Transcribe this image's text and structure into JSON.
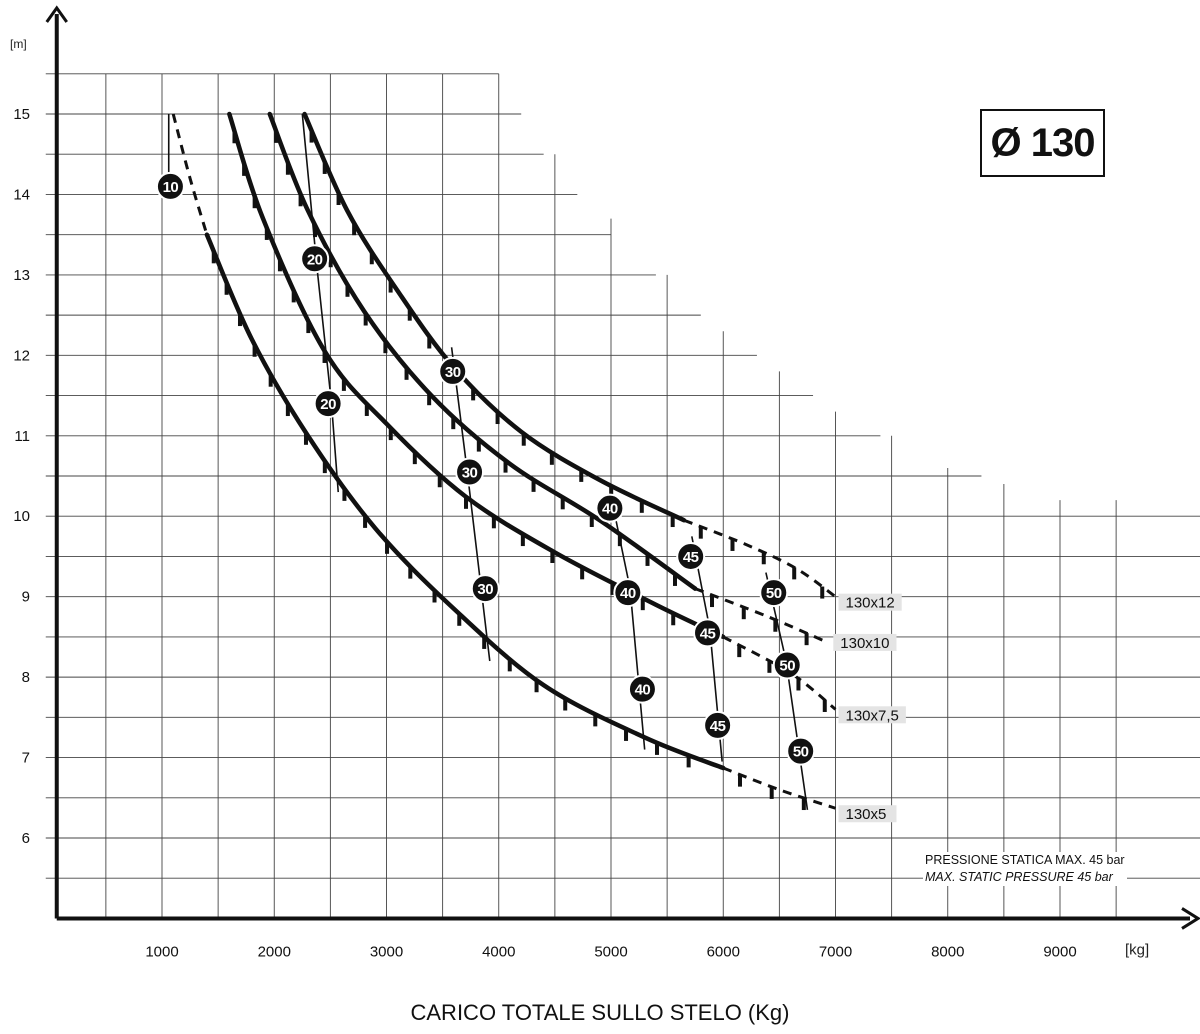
{
  "diameter_label": "Ø 130",
  "pressure_note": {
    "it": "PRESSIONE STATICA MAX. 45 bar",
    "en": "MAX. STATIC PRESSURE 45 bar"
  },
  "chart_data": {
    "type": "line",
    "title": "",
    "xlabel": "CARICO TOTALE SULLO STELO (Kg)",
    "x_unit": "[kg]",
    "y_unit": "[m]",
    "xlim": [
      0,
      10200
    ],
    "ylim": [
      5,
      15.5
    ],
    "x_ticks": [
      1000,
      2000,
      3000,
      4000,
      5000,
      6000,
      7000,
      8000,
      9000
    ],
    "y_ticks": [
      6,
      7,
      8,
      9,
      10,
      11,
      12,
      13,
      14,
      15
    ],
    "grid": true,
    "series": [
      {
        "name": "130x12",
        "points": [
          [
            2270,
            15.0
          ],
          [
            2650,
            13.8
          ],
          [
            3100,
            12.8
          ],
          [
            3600,
            11.85
          ],
          [
            4200,
            11.05
          ],
          [
            4900,
            10.45
          ],
          [
            5650,
            9.95
          ]
        ],
        "dashed_points": [
          [
            5650,
            9.95
          ],
          [
            6200,
            9.65
          ],
          [
            6650,
            9.35
          ],
          [
            7000,
            9.0
          ]
        ]
      },
      {
        "name": "130x10",
        "points": [
          [
            1960,
            15.0
          ],
          [
            2300,
            13.8
          ],
          [
            2800,
            12.55
          ],
          [
            3400,
            11.5
          ],
          [
            4100,
            10.65
          ],
          [
            4900,
            9.95
          ],
          [
            5750,
            9.1
          ]
        ],
        "dashed_points": [
          [
            5750,
            9.1
          ],
          [
            6400,
            8.75
          ],
          [
            6900,
            8.45
          ]
        ]
      },
      {
        "name": "130x7,5",
        "points": [
          [
            1600,
            15.0
          ],
          [
            1900,
            13.7
          ],
          [
            2450,
            12.05
          ],
          [
            3000,
            11.15
          ],
          [
            3700,
            10.25
          ],
          [
            4500,
            9.55
          ],
          [
            5400,
            8.9
          ],
          [
            6000,
            8.5
          ]
        ],
        "dashed_points": [
          [
            6000,
            8.5
          ],
          [
            6600,
            8.05
          ],
          [
            7000,
            7.6
          ]
        ]
      },
      {
        "name": "130x5",
        "points": [
          [
            1400,
            13.5
          ],
          [
            1800,
            12.2
          ],
          [
            2300,
            11.0
          ],
          [
            2900,
            9.85
          ],
          [
            3600,
            8.85
          ],
          [
            4400,
            7.9
          ],
          [
            5300,
            7.25
          ],
          [
            6000,
            6.87
          ]
        ],
        "dashed_points": [
          [
            6000,
            6.87
          ],
          [
            6500,
            6.6
          ],
          [
            7000,
            6.37
          ]
        ],
        "lead_dashed_points": [
          [
            1100,
            15.0
          ],
          [
            1250,
            14.2
          ],
          [
            1400,
            13.5
          ]
        ]
      }
    ],
    "iso_lines": [
      {
        "label": "10",
        "points": [
          [
            1060,
            15.0
          ],
          [
            1060,
            14.1
          ]
        ],
        "marker": [
          1075,
          14.1
        ]
      },
      {
        "label": "20",
        "points": [
          [
            2250,
            15.0
          ],
          [
            2380,
            13.1
          ],
          [
            2510,
            11.4
          ],
          [
            2570,
            10.3
          ]
        ],
        "markers": [
          [
            2360,
            13.2
          ],
          [
            2480,
            11.4
          ]
        ]
      },
      {
        "label": "30",
        "points": [
          [
            3580,
            12.1
          ],
          [
            3720,
            10.55
          ],
          [
            3920,
            8.2
          ]
        ],
        "markers": [
          [
            3590,
            11.8
          ],
          [
            3740,
            10.55
          ],
          [
            3880,
            9.1
          ]
        ]
      },
      {
        "label": "40",
        "points": [
          [
            5000,
            10.25
          ],
          [
            5170,
            9.1
          ],
          [
            5300,
            7.1
          ]
        ],
        "markers": [
          [
            4990,
            10.1
          ],
          [
            5150,
            9.05
          ],
          [
            5280,
            7.85
          ]
        ]
      },
      {
        "label": "45",
        "points": [
          [
            5720,
            9.75
          ],
          [
            5880,
            8.6
          ],
          [
            5990,
            6.95
          ]
        ],
        "markers": [
          [
            5710,
            9.5
          ],
          [
            5860,
            8.55
          ],
          [
            5950,
            7.4
          ]
        ]
      },
      {
        "label": "50",
        "points": [
          [
            6380,
            9.3
          ],
          [
            6560,
            8.2
          ],
          [
            6750,
            6.35
          ]
        ],
        "markers": [
          [
            6450,
            9.05
          ],
          [
            6570,
            8.15
          ],
          [
            6690,
            7.08
          ]
        ]
      }
    ]
  }
}
